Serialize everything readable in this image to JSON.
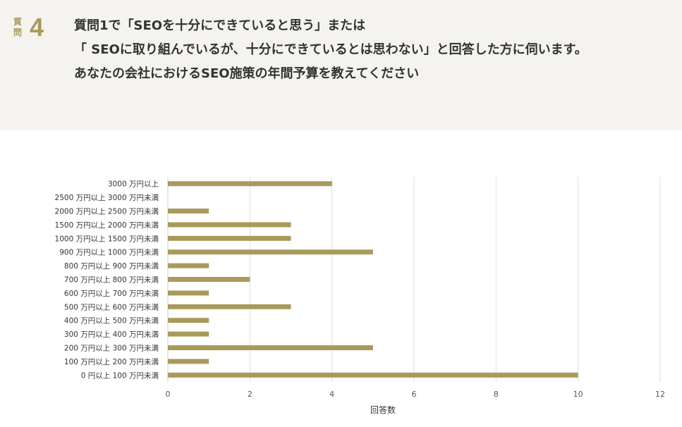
{
  "question": {
    "label": "質問",
    "number": "4",
    "lines": [
      "質問1で「SEOを十分にできていると思う」または",
      "「 SEOに取り組んでいるが、十分にできているとは思わない」と回答した方に伺います。",
      "あなたの会社におけるSEO施策の年間予算を教えてください"
    ]
  },
  "colors": {
    "bar": "#a89a5b",
    "accent": "#a89a5b",
    "header_bg": "#f4f3ef",
    "grid": "#dddddd"
  },
  "chart_data": {
    "type": "bar",
    "orientation": "horizontal",
    "categories": [
      "3000 万円以上",
      "2500 万円以上 3000 万円未満",
      "2000 万円以上 2500 万円未満",
      "1500 万円以上 2000 万円未満",
      "1000 万円以上 1500 万円未満",
      "900 万円以上 1000 万円未満",
      "800 万円以上 900 万円未満",
      "700 万円以上 800 万円未満",
      "600 万円以上 700 万円未満",
      "500 万円以上 600 万円未満",
      "400 万円以上 500 万円未満",
      "300 万円以上 400 万円未満",
      "200 万円以上 300 万円未満",
      "100 万円以上 200 万円未満",
      "0 円以上 100 万円未満"
    ],
    "values": [
      4,
      0,
      1,
      3,
      3,
      5,
      1,
      2,
      1,
      3,
      1,
      1,
      5,
      1,
      10
    ],
    "xlabel": "回答数",
    "ylabel": "",
    "xlim": [
      0,
      12
    ],
    "xticks": [
      0,
      2,
      4,
      6,
      8,
      10,
      12
    ],
    "grid": true
  }
}
